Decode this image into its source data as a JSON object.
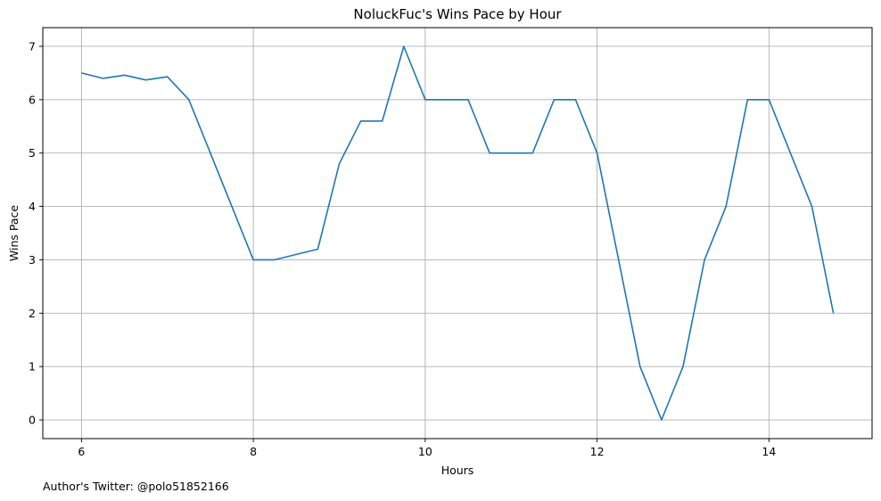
{
  "chart_data": {
    "type": "line",
    "title": "NoluckFuc's Wins Pace by Hour",
    "xlabel": "Hours",
    "ylabel": "Wins Pace",
    "xlim": [
      5.55,
      15.2
    ],
    "ylim": [
      -0.35,
      7.35
    ],
    "xticks": [
      6,
      8,
      10,
      12,
      14
    ],
    "yticks": [
      0,
      1,
      2,
      3,
      4,
      5,
      6,
      7
    ],
    "grid": true,
    "line_color": "#1f77b4",
    "series": [
      {
        "x": [
          6.0,
          6.25,
          6.5,
          6.75,
          7.0,
          7.25,
          7.5,
          7.75,
          8.0,
          8.25,
          8.5,
          8.75,
          9.0,
          9.25,
          9.5,
          9.75,
          10.0,
          10.25,
          10.5,
          10.75,
          11.0,
          11.25,
          11.5,
          11.75,
          12.0,
          12.25,
          12.5,
          12.75,
          13.0,
          13.25,
          13.5,
          13.75,
          14.0,
          14.25,
          14.5,
          14.75
        ],
        "y": [
          6.5,
          6.4,
          6.46,
          6.37,
          6.43,
          6.0,
          5.0,
          4.0,
          3.0,
          3.0,
          3.1,
          3.2,
          4.8,
          5.6,
          5.6,
          7.0,
          6.0,
          6.0,
          6.0,
          5.0,
          5.0,
          5.0,
          6.0,
          6.0,
          5.0,
          3.0,
          1.0,
          0.0,
          1.0,
          3.0,
          4.0,
          6.0,
          6.0,
          5.0,
          4.0,
          2.0
        ]
      }
    ]
  },
  "footer": {
    "text": "Author's Twitter: @polo51852166"
  }
}
